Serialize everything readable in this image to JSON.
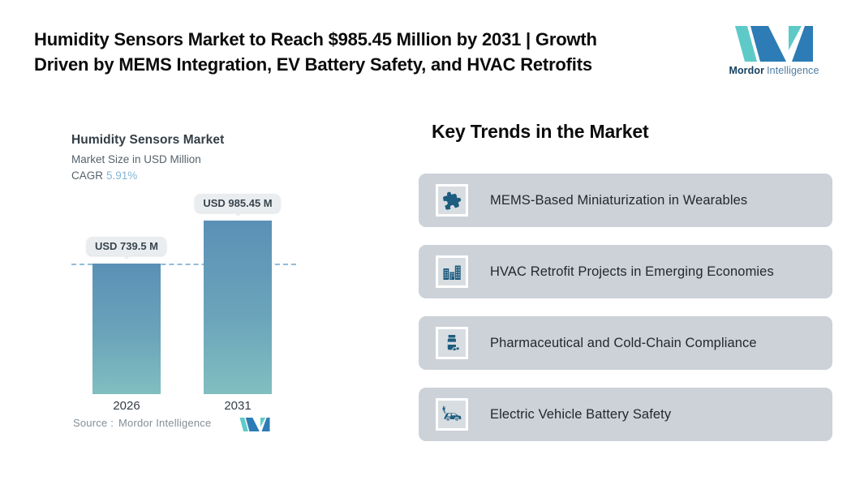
{
  "header": {
    "title_line1": "Humidity Sensors Market to Reach $985.45 Million by 2031 | Growth",
    "title_line2": "Driven by MEMS Integration, EV Battery Safety, and HVAC Retrofits",
    "brand": {
      "bold": "Mordor",
      "light": "Intelligence"
    }
  },
  "chart": {
    "title": "Humidity Sensors Market",
    "subtitle": "Market Size in USD Million",
    "cagr_label": "CAGR",
    "cagr_value": "5.91%",
    "source_label": "Source :",
    "source_value": "Mordor Intelligence"
  },
  "chart_data": {
    "type": "bar",
    "title": "Humidity Sensors Market",
    "subtitle": "Market Size in USD Million",
    "unit": "USD Million",
    "cagr_percent": 5.91,
    "categories": [
      "2026",
      "2031"
    ],
    "values": [
      739.5,
      985.45
    ],
    "value_labels": [
      "USD 739.5 M",
      "USD 985.45 M"
    ],
    "ylim": [
      0,
      985.45
    ],
    "reference_line_value": 739.5,
    "grid": false,
    "legend": false
  },
  "trends": {
    "heading": "Key Trends in the Market",
    "items": [
      {
        "icon": "puzzle-icon",
        "label": "MEMS-Based Miniaturization in Wearables"
      },
      {
        "icon": "buildings-icon",
        "label": "HVAC Retrofit Projects in Emerging Economies"
      },
      {
        "icon": "pill-bottle-icon",
        "label": "Pharmaceutical and Cold-Chain Compliance"
      },
      {
        "icon": "ev-car-icon",
        "label": "Electric Vehicle Battery Safety"
      }
    ]
  },
  "colors": {
    "brand_blue": "#2d7cb5",
    "brand_teal": "#5ecac8",
    "icon_blue": "#1d5d80",
    "bar_gradient_top": "#5b90b6",
    "bar_gradient_bottom": "#81bec0",
    "dashed_line": "#93bcd8",
    "card_bg": "#cdd2d9",
    "tile_bg": "#d8dde1",
    "pill_bg": "#e9edef",
    "cagr_value_color": "#84b6d4"
  }
}
